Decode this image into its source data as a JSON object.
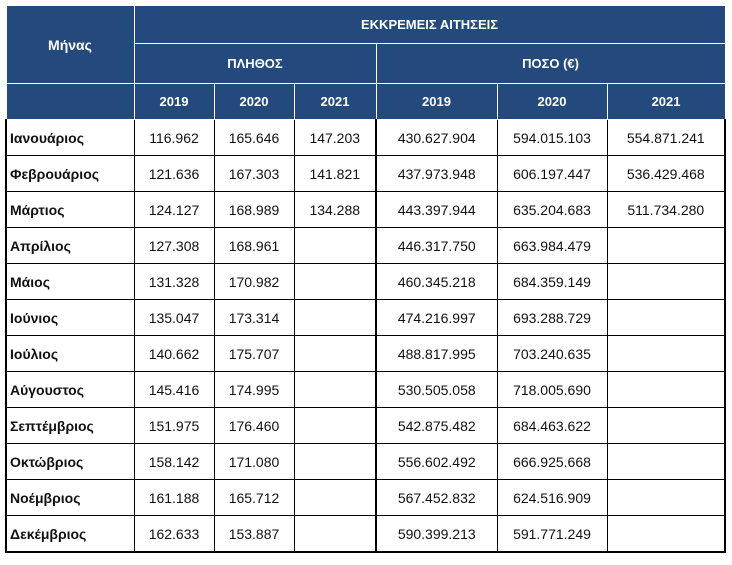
{
  "header": {
    "month_label": "Μήνας",
    "group_title": "ΕΚΚΡΕΜΕΙΣ ΑΙΤΗΣΕΙΣ",
    "count_title": "ΠΛΗΘΟΣ",
    "amount_title": "ΠΟΣΟ (€)",
    "years": [
      "2019",
      "2020",
      "2021"
    ]
  },
  "rows": [
    {
      "month": "Ιανουάριος",
      "count": [
        "116.962",
        "165.646",
        "147.203"
      ],
      "amount": [
        "430.627.904",
        "594.015.103",
        "554.871.241"
      ]
    },
    {
      "month": "Φεβρουάριος",
      "count": [
        "121.636",
        "167.303",
        "141.821"
      ],
      "amount": [
        "437.973.948",
        "606.197.447",
        "536.429.468"
      ]
    },
    {
      "month": "Μάρτιος",
      "count": [
        "124.127",
        "168.989",
        "134.288"
      ],
      "amount": [
        "443.397.944",
        "635.204.683",
        "511.734.280"
      ]
    },
    {
      "month": "Απρίλιος",
      "count": [
        "127.308",
        "168.961",
        ""
      ],
      "amount": [
        "446.317.750",
        "663.984.479",
        ""
      ]
    },
    {
      "month": "Μάιος",
      "count": [
        "131.328",
        "170.982",
        ""
      ],
      "amount": [
        "460.345.218",
        "684.359.149",
        ""
      ]
    },
    {
      "month": "Ιούνιος",
      "count": [
        "135.047",
        "173.314",
        ""
      ],
      "amount": [
        "474.216.997",
        "693.288.729",
        ""
      ]
    },
    {
      "month": "Ιούλιος",
      "count": [
        "140.662",
        "175.707",
        ""
      ],
      "amount": [
        "488.817.995",
        "703.240.635",
        ""
      ]
    },
    {
      "month": "Αύγουστος",
      "count": [
        "145.416",
        "174.995",
        ""
      ],
      "amount": [
        "530.505.058",
        "718.005.690",
        ""
      ]
    },
    {
      "month": "Σεπτέμβριος",
      "count": [
        "151.975",
        "176.460",
        ""
      ],
      "amount": [
        "542.875.482",
        "684.463.622",
        ""
      ]
    },
    {
      "month": "Οκτώβριος",
      "count": [
        "158.142",
        "171.080",
        ""
      ],
      "amount": [
        "556.602.492",
        "666.925.668",
        ""
      ]
    },
    {
      "month": "Νοέμβριος",
      "count": [
        "161.188",
        "165.712",
        ""
      ],
      "amount": [
        "567.452.832",
        "624.516.909",
        ""
      ]
    },
    {
      "month": "Δεκέμβριος",
      "count": [
        "162.633",
        "153.887",
        ""
      ],
      "amount": [
        "590.399.213",
        "591.771.249",
        ""
      ]
    }
  ]
}
